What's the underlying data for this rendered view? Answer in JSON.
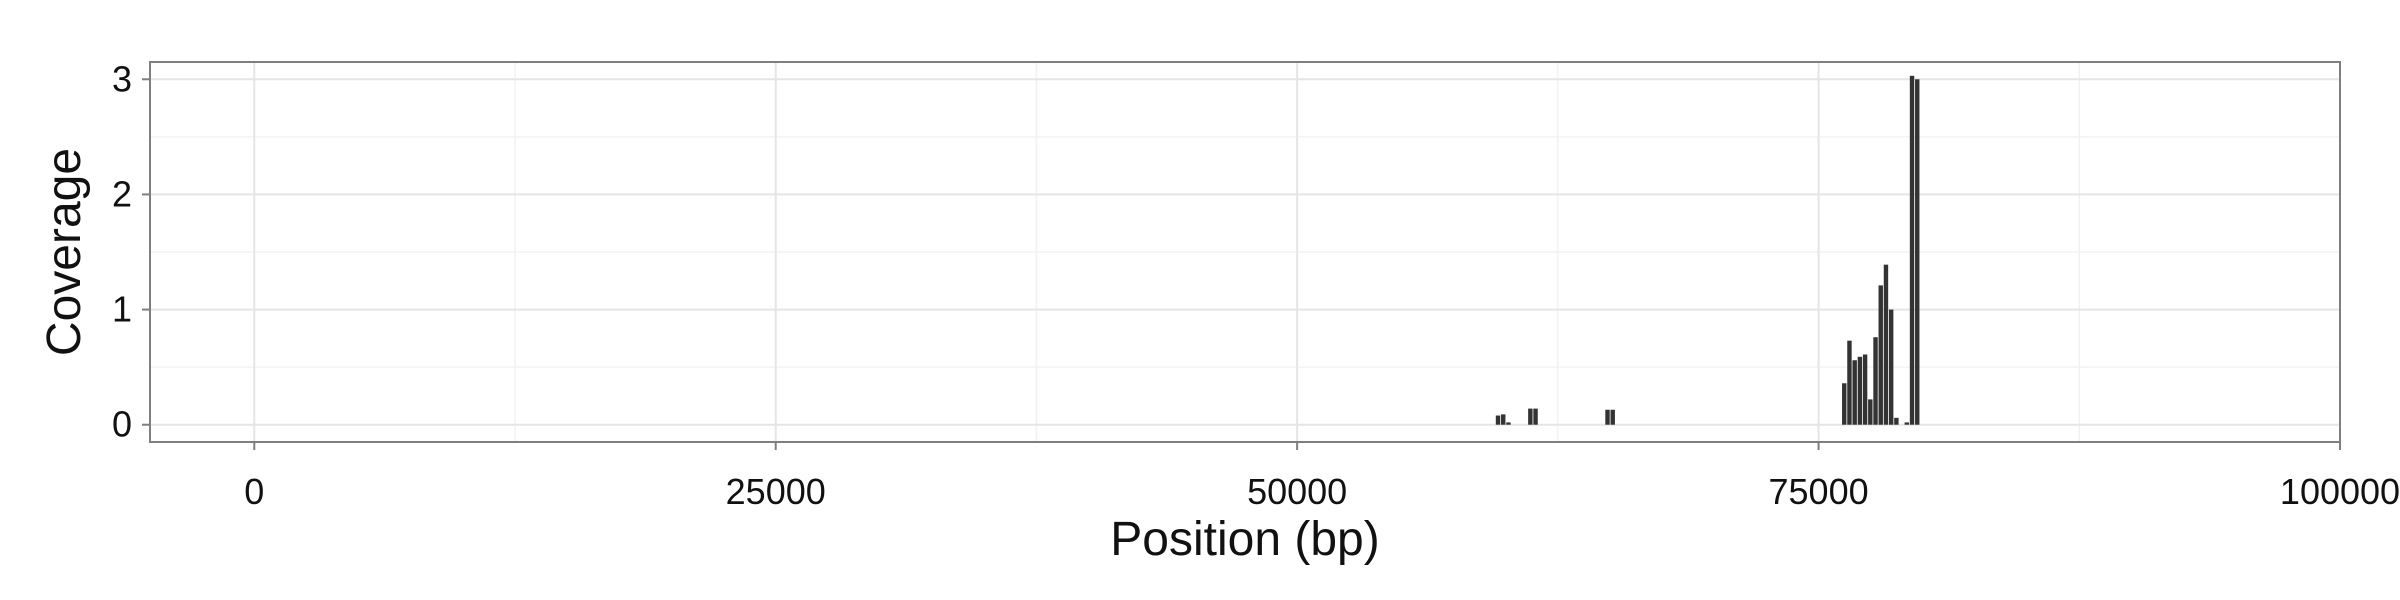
{
  "chart_data": {
    "type": "bar",
    "title": "",
    "xlabel": "Position (bp)",
    "ylabel": "Coverage",
    "xlim": [
      -5000,
      100000
    ],
    "ylim": [
      -0.15,
      3.15
    ],
    "x_ticks": [
      0,
      25000,
      50000,
      75000,
      100000
    ],
    "x_tick_labels": [
      "0",
      "25000",
      "50000",
      "75000",
      "100000"
    ],
    "y_ticks": [
      0,
      1,
      2,
      3
    ],
    "y_tick_labels": [
      "0",
      "1",
      "2",
      "3"
    ],
    "grid": true,
    "bar_width": 250,
    "x": [
      59650,
      59900,
      60150,
      61200,
      61450,
      64900,
      65150,
      76250,
      76500,
      76750,
      77000,
      77250,
      77500,
      77750,
      78000,
      78250,
      78500,
      78750,
      79250,
      79500,
      79750
    ],
    "values": [
      0.08,
      0.09,
      0.02,
      0.14,
      0.14,
      0.13,
      0.13,
      0.36,
      0.73,
      0.56,
      0.59,
      0.61,
      0.22,
      0.76,
      1.21,
      1.39,
      1.0,
      0.06,
      0.02,
      3.03,
      3.0
    ],
    "colors": {
      "bar": "#333333",
      "panel_background": "#ffffff",
      "panel_border": "#7f7f7f",
      "grid_major": "#e5e5e5",
      "grid_minor": "#f2f2f2",
      "axis_tick": "#7f7f7f",
      "text": "#111111"
    }
  }
}
